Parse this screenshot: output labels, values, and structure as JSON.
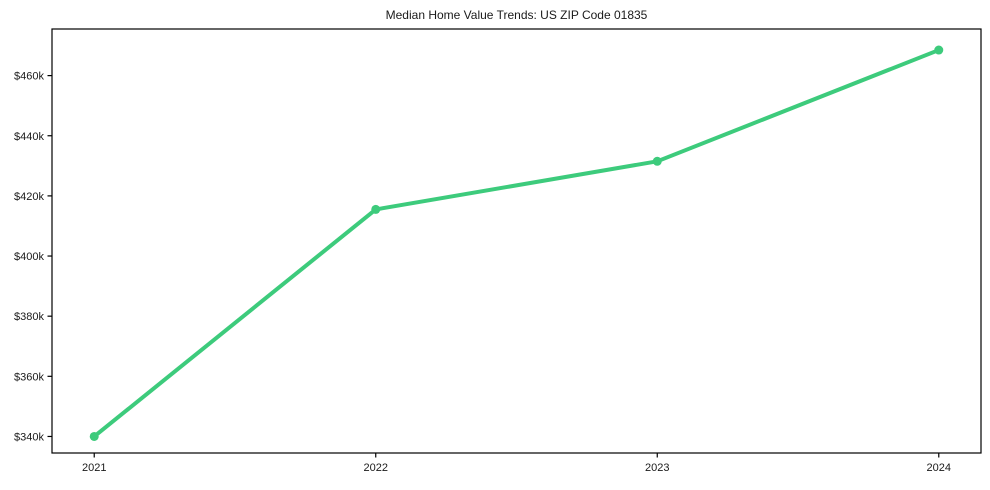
{
  "chart_data": {
    "type": "line",
    "title": "Median Home Value Trends: US ZIP Code 01835",
    "x": [
      2021,
      2022,
      2023,
      2024
    ],
    "x_tick_labels": [
      "2021",
      "2022",
      "2023",
      "2024"
    ],
    "series": [
      {
        "name": "Median Home Value",
        "values": [
          340,
          415.5,
          431.5,
          468.5
        ]
      }
    ],
    "unit": "thousands of USD",
    "y_ticks": [
      340,
      360,
      380,
      400,
      420,
      440,
      460
    ],
    "y_tick_labels": [
      "$340k",
      "$360k",
      "$380k",
      "$400k",
      "$420k",
      "$440k",
      "$460k"
    ],
    "xlim": [
      2020.85,
      2024.15
    ],
    "ylim": [
      334.5,
      475.5
    ],
    "xlabel": "",
    "ylabel": "",
    "grid": false,
    "legend": false,
    "line_color": "#3dcb7c",
    "axis_color": "#000000",
    "background_color": "#ffffff",
    "line_width": 4,
    "marker": "circle",
    "marker_radius": 4.5
  }
}
